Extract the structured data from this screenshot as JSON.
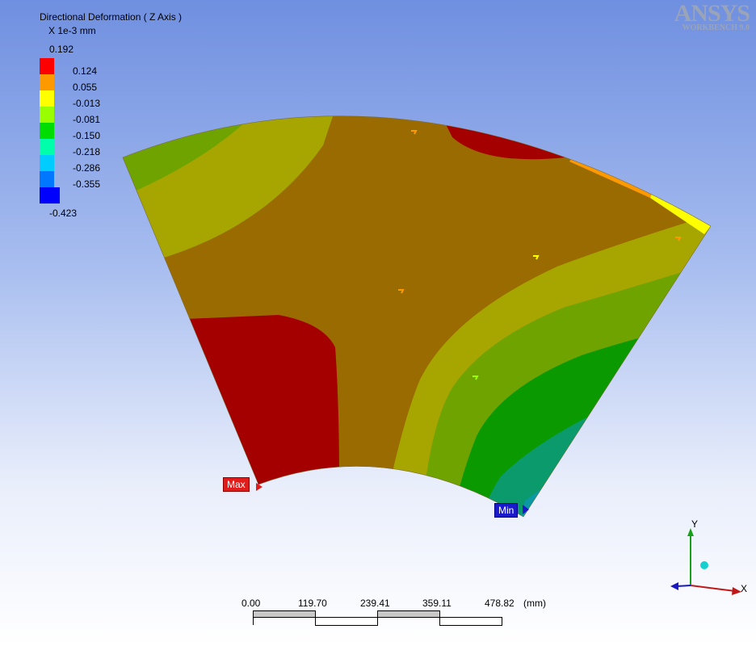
{
  "legend": {
    "title": "Directional Deformation ( Z Axis )",
    "units": "X 1e-3 mm",
    "max_value": "0.192",
    "levels": [
      "0.124",
      "0.055",
      "-0.013",
      "-0.081",
      "-0.150",
      "-0.218",
      "-0.286",
      "-0.355"
    ],
    "min_value": "-0.423",
    "colors": [
      "#ff0000",
      "#ff9900",
      "#ffff00",
      "#99ff00",
      "#00dd00",
      "#00ffaa",
      "#00ccff",
      "#0077ff",
      "#0000ff"
    ]
  },
  "logo": {
    "brand": "ANSYS",
    "product": "WORKBENCH 9.0"
  },
  "markers": {
    "max_label": "Max",
    "min_label": "Min"
  },
  "scale": {
    "ticks": [
      "0.00",
      "119.70",
      "239.41",
      "359.11",
      "478.82"
    ],
    "unit": "(mm)"
  },
  "triad": {
    "x_label": "X",
    "y_label": "Y"
  }
}
